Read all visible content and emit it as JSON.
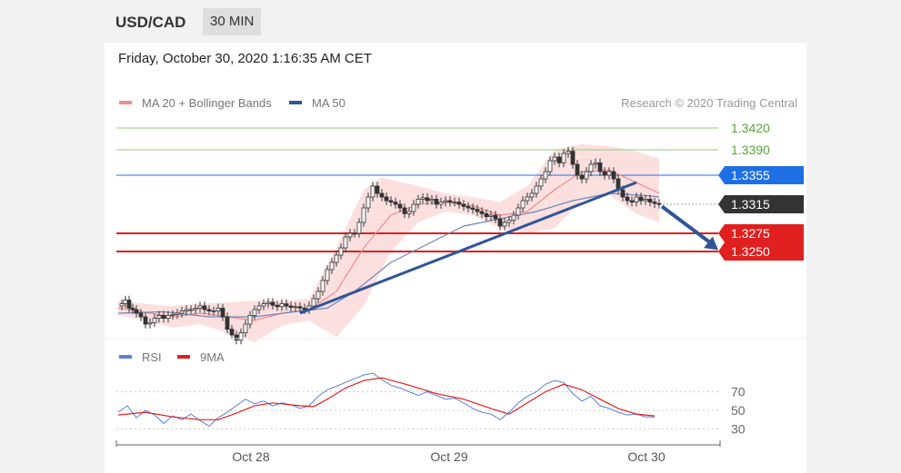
{
  "header": {
    "pair": "USD/CAD",
    "timeframe": "30 MIN"
  },
  "date_text": "Friday, October 30, 2020 1:16:35 AM CET",
  "credit": "Research © 2020 Trading Central",
  "colors": {
    "support": "#e01f1f",
    "resistance_green": "#8fcf6f",
    "pivot_blue": "#1e6fe6",
    "current": "#333333",
    "ma50": "#2f5597",
    "bollinger": "#f08b8b",
    "rsi": "#5b7fd8",
    "rsi_ma": "#e01f1f"
  },
  "chart_data": [
    {
      "type": "line",
      "title": "",
      "legend": [
        {
          "name": "MA 20 + Bollinger Bands",
          "color": "#f08b8b"
        },
        {
          "name": "MA 50",
          "color": "#2f5597"
        }
      ],
      "levels": [
        {
          "label": "1.3420",
          "value": 1.342,
          "kind": "resistance"
        },
        {
          "label": "1.3390",
          "value": 1.339,
          "kind": "resistance"
        },
        {
          "label": "1.3355",
          "value": 1.3355,
          "kind": "pivot"
        },
        {
          "label": "1.3315",
          "value": 1.3315,
          "kind": "current"
        },
        {
          "label": "1.3275",
          "value": 1.3275,
          "kind": "support"
        },
        {
          "label": "1.3250",
          "value": 1.325,
          "kind": "support"
        }
      ],
      "price_series": [
        {
          "x": 0,
          "y": 1.3175
        },
        {
          "x": 4,
          "y": 1.3178
        },
        {
          "x": 8,
          "y": 1.3183
        },
        {
          "x": 12,
          "y": 1.3172
        },
        {
          "x": 16,
          "y": 1.317
        },
        {
          "x": 20,
          "y": 1.3165
        },
        {
          "x": 25,
          "y": 1.316
        },
        {
          "x": 30,
          "y": 1.315
        },
        {
          "x": 35,
          "y": 1.3152
        },
        {
          "x": 40,
          "y": 1.3158
        },
        {
          "x": 45,
          "y": 1.3162
        },
        {
          "x": 50,
          "y": 1.3158
        },
        {
          "x": 55,
          "y": 1.3162
        },
        {
          "x": 60,
          "y": 1.3163
        },
        {
          "x": 65,
          "y": 1.3165
        },
        {
          "x": 70,
          "y": 1.3168
        },
        {
          "x": 75,
          "y": 1.317
        },
        {
          "x": 80,
          "y": 1.317
        },
        {
          "x": 85,
          "y": 1.3172
        },
        {
          "x": 90,
          "y": 1.3175
        },
        {
          "x": 95,
          "y": 1.317
        },
        {
          "x": 100,
          "y": 1.3168
        },
        {
          "x": 105,
          "y": 1.3168
        },
        {
          "x": 110,
          "y": 1.3172
        },
        {
          "x": 115,
          "y": 1.316
        },
        {
          "x": 120,
          "y": 1.3143
        },
        {
          "x": 125,
          "y": 1.3135
        },
        {
          "x": 130,
          "y": 1.3128
        },
        {
          "x": 135,
          "y": 1.3138
        },
        {
          "x": 140,
          "y": 1.315
        },
        {
          "x": 145,
          "y": 1.3162
        },
        {
          "x": 150,
          "y": 1.317
        },
        {
          "x": 155,
          "y": 1.3175
        },
        {
          "x": 160,
          "y": 1.3178
        },
        {
          "x": 165,
          "y": 1.318
        },
        {
          "x": 170,
          "y": 1.3176
        },
        {
          "x": 175,
          "y": 1.3174
        },
        {
          "x": 180,
          "y": 1.3178
        },
        {
          "x": 185,
          "y": 1.3175
        },
        {
          "x": 190,
          "y": 1.3173
        },
        {
          "x": 195,
          "y": 1.3174
        },
        {
          "x": 200,
          "y": 1.3172
        },
        {
          "x": 205,
          "y": 1.317
        },
        {
          "x": 210,
          "y": 1.3175
        },
        {
          "x": 215,
          "y": 1.3185
        },
        {
          "x": 220,
          "y": 1.3195
        },
        {
          "x": 225,
          "y": 1.321
        },
        {
          "x": 230,
          "y": 1.3225
        },
        {
          "x": 235,
          "y": 1.3235
        },
        {
          "x": 240,
          "y": 1.3245
        },
        {
          "x": 245,
          "y": 1.3255
        },
        {
          "x": 250,
          "y": 1.327
        },
        {
          "x": 255,
          "y": 1.3275
        },
        {
          "x": 260,
          "y": 1.3275
        },
        {
          "x": 265,
          "y": 1.329
        },
        {
          "x": 270,
          "y": 1.331
        },
        {
          "x": 275,
          "y": 1.3325
        },
        {
          "x": 280,
          "y": 1.334
        },
        {
          "x": 285,
          "y": 1.333
        },
        {
          "x": 290,
          "y": 1.3325
        },
        {
          "x": 295,
          "y": 1.332
        },
        {
          "x": 300,
          "y": 1.3318
        },
        {
          "x": 305,
          "y": 1.3315
        },
        {
          "x": 310,
          "y": 1.331
        },
        {
          "x": 315,
          "y": 1.3302
        },
        {
          "x": 320,
          "y": 1.3305
        },
        {
          "x": 325,
          "y": 1.3315
        },
        {
          "x": 330,
          "y": 1.3322
        },
        {
          "x": 335,
          "y": 1.3324
        },
        {
          "x": 340,
          "y": 1.332
        },
        {
          "x": 345,
          "y": 1.3322
        },
        {
          "x": 350,
          "y": 1.3315
        },
        {
          "x": 355,
          "y": 1.3318
        },
        {
          "x": 360,
          "y": 1.332
        },
        {
          "x": 365,
          "y": 1.3318
        },
        {
          "x": 370,
          "y": 1.3318
        },
        {
          "x": 375,
          "y": 1.3315
        },
        {
          "x": 380,
          "y": 1.3312
        },
        {
          "x": 385,
          "y": 1.331
        },
        {
          "x": 390,
          "y": 1.3308
        },
        {
          "x": 395,
          "y": 1.3305
        },
        {
          "x": 400,
          "y": 1.3302
        },
        {
          "x": 405,
          "y": 1.3298
        },
        {
          "x": 410,
          "y": 1.33
        },
        {
          "x": 415,
          "y": 1.3295
        },
        {
          "x": 420,
          "y": 1.3285
        },
        {
          "x": 425,
          "y": 1.329
        },
        {
          "x": 430,
          "y": 1.3293
        },
        {
          "x": 435,
          "y": 1.33
        },
        {
          "x": 440,
          "y": 1.331
        },
        {
          "x": 445,
          "y": 1.332
        },
        {
          "x": 450,
          "y": 1.3325
        },
        {
          "x": 455,
          "y": 1.333
        },
        {
          "x": 460,
          "y": 1.334
        },
        {
          "x": 465,
          "y": 1.335
        },
        {
          "x": 470,
          "y": 1.336
        },
        {
          "x": 475,
          "y": 1.3375
        },
        {
          "x": 480,
          "y": 1.338
        },
        {
          "x": 485,
          "y": 1.3372
        },
        {
          "x": 490,
          "y": 1.3385
        },
        {
          "x": 495,
          "y": 1.3388
        },
        {
          "x": 500,
          "y": 1.337
        },
        {
          "x": 505,
          "y": 1.3355
        },
        {
          "x": 510,
          "y": 1.335
        },
        {
          "x": 515,
          "y": 1.336
        },
        {
          "x": 520,
          "y": 1.337
        },
        {
          "x": 525,
          "y": 1.3372
        },
        {
          "x": 530,
          "y": 1.336
        },
        {
          "x": 535,
          "y": 1.3355
        },
        {
          "x": 540,
          "y": 1.336
        },
        {
          "x": 545,
          "y": 1.335
        },
        {
          "x": 550,
          "y": 1.3335
        },
        {
          "x": 555,
          "y": 1.3325
        },
        {
          "x": 560,
          "y": 1.332
        },
        {
          "x": 565,
          "y": 1.3318
        },
        {
          "x": 570,
          "y": 1.3325
        },
        {
          "x": 575,
          "y": 1.332
        },
        {
          "x": 580,
          "y": 1.3322
        },
        {
          "x": 585,
          "y": 1.3318
        },
        {
          "x": 590,
          "y": 1.3316
        },
        {
          "x": 595,
          "y": 1.3315
        }
      ],
      "ma20": [
        {
          "x": 0,
          "y": 1.3172
        },
        {
          "x": 30,
          "y": 1.3166
        },
        {
          "x": 60,
          "y": 1.316
        },
        {
          "x": 90,
          "y": 1.3165
        },
        {
          "x": 120,
          "y": 1.316
        },
        {
          "x": 150,
          "y": 1.3155
        },
        {
          "x": 180,
          "y": 1.3165
        },
        {
          "x": 210,
          "y": 1.317
        },
        {
          "x": 240,
          "y": 1.3195
        },
        {
          "x": 270,
          "y": 1.3255
        },
        {
          "x": 300,
          "y": 1.33
        },
        {
          "x": 330,
          "y": 1.3315
        },
        {
          "x": 360,
          "y": 1.3318
        },
        {
          "x": 390,
          "y": 1.3313
        },
        {
          "x": 420,
          "y": 1.33
        },
        {
          "x": 450,
          "y": 1.3305
        },
        {
          "x": 480,
          "y": 1.3335
        },
        {
          "x": 510,
          "y": 1.336
        },
        {
          "x": 540,
          "y": 1.3362
        },
        {
          "x": 570,
          "y": 1.3345
        },
        {
          "x": 595,
          "y": 1.333
        }
      ],
      "bollinger_upper": [
        {
          "x": 0,
          "y": 1.3182
        },
        {
          "x": 30,
          "y": 1.3178
        },
        {
          "x": 60,
          "y": 1.3175
        },
        {
          "x": 90,
          "y": 1.3178
        },
        {
          "x": 120,
          "y": 1.318
        },
        {
          "x": 150,
          "y": 1.3182
        },
        {
          "x": 180,
          "y": 1.3182
        },
        {
          "x": 210,
          "y": 1.3185
        },
        {
          "x": 240,
          "y": 1.3255
        },
        {
          "x": 270,
          "y": 1.3335
        },
        {
          "x": 290,
          "y": 1.3352
        },
        {
          "x": 330,
          "y": 1.334
        },
        {
          "x": 360,
          "y": 1.333
        },
        {
          "x": 390,
          "y": 1.3325
        },
        {
          "x": 420,
          "y": 1.3318
        },
        {
          "x": 450,
          "y": 1.334
        },
        {
          "x": 480,
          "y": 1.339
        },
        {
          "x": 510,
          "y": 1.3398
        },
        {
          "x": 540,
          "y": 1.3395
        },
        {
          "x": 570,
          "y": 1.3388
        },
        {
          "x": 595,
          "y": 1.3378
        }
      ],
      "bollinger_lower": [
        {
          "x": 0,
          "y": 1.3162
        },
        {
          "x": 30,
          "y": 1.3155
        },
        {
          "x": 60,
          "y": 1.3145
        },
        {
          "x": 90,
          "y": 1.315
        },
        {
          "x": 120,
          "y": 1.3138
        },
        {
          "x": 150,
          "y": 1.3125
        },
        {
          "x": 180,
          "y": 1.3148
        },
        {
          "x": 210,
          "y": 1.3155
        },
        {
          "x": 240,
          "y": 1.3132
        },
        {
          "x": 270,
          "y": 1.3175
        },
        {
          "x": 300,
          "y": 1.325
        },
        {
          "x": 330,
          "y": 1.329
        },
        {
          "x": 360,
          "y": 1.3305
        },
        {
          "x": 390,
          "y": 1.33
        },
        {
          "x": 420,
          "y": 1.3282
        },
        {
          "x": 450,
          "y": 1.3275
        },
        {
          "x": 480,
          "y": 1.3282
        },
        {
          "x": 510,
          "y": 1.332
        },
        {
          "x": 540,
          "y": 1.3328
        },
        {
          "x": 570,
          "y": 1.3302
        },
        {
          "x": 595,
          "y": 1.329
        }
      ],
      "ma50": [
        {
          "x": 0,
          "y": 1.3165
        },
        {
          "x": 50,
          "y": 1.3167
        },
        {
          "x": 100,
          "y": 1.316
        },
        {
          "x": 150,
          "y": 1.316
        },
        {
          "x": 200,
          "y": 1.3168
        },
        {
          "x": 230,
          "y": 1.3172
        },
        {
          "x": 260,
          "y": 1.3195
        },
        {
          "x": 300,
          "y": 1.3235
        },
        {
          "x": 340,
          "y": 1.326
        },
        {
          "x": 380,
          "y": 1.3285
        },
        {
          "x": 420,
          "y": 1.3295
        },
        {
          "x": 460,
          "y": 1.3305
        },
        {
          "x": 500,
          "y": 1.332
        },
        {
          "x": 540,
          "y": 1.333
        },
        {
          "x": 580,
          "y": 1.3327
        },
        {
          "x": 595,
          "y": 1.3325
        }
      ],
      "trendline": [
        {
          "x": 200,
          "y": 1.3165
        },
        {
          "x": 570,
          "y": 1.3345
        }
      ],
      "forecast_arrow": [
        {
          "x": 598,
          "y": 1.3312
        },
        {
          "x": 660,
          "y": 1.3252
        }
      ]
    },
    {
      "type": "line",
      "title": "",
      "legend": [
        {
          "name": "RSI",
          "color": "#5b7fd8"
        },
        {
          "name": "9MA",
          "color": "#e01f1f"
        }
      ],
      "y_ticks": [
        70,
        50,
        30
      ],
      "x_labels": [
        "Oct 28",
        "Oct 29",
        "Oct 30"
      ],
      "rsi": [
        {
          "x": 0,
          "y": 48
        },
        {
          "x": 10,
          "y": 55
        },
        {
          "x": 20,
          "y": 42
        },
        {
          "x": 30,
          "y": 50
        },
        {
          "x": 40,
          "y": 45
        },
        {
          "x": 50,
          "y": 36
        },
        {
          "x": 60,
          "y": 44
        },
        {
          "x": 70,
          "y": 40
        },
        {
          "x": 80,
          "y": 46
        },
        {
          "x": 90,
          "y": 39
        },
        {
          "x": 100,
          "y": 33
        },
        {
          "x": 110,
          "y": 42
        },
        {
          "x": 120,
          "y": 48
        },
        {
          "x": 130,
          "y": 55
        },
        {
          "x": 140,
          "y": 62
        },
        {
          "x": 150,
          "y": 57
        },
        {
          "x": 160,
          "y": 60
        },
        {
          "x": 170,
          "y": 55
        },
        {
          "x": 180,
          "y": 58
        },
        {
          "x": 190,
          "y": 56
        },
        {
          "x": 200,
          "y": 52
        },
        {
          "x": 210,
          "y": 55
        },
        {
          "x": 220,
          "y": 65
        },
        {
          "x": 230,
          "y": 72
        },
        {
          "x": 240,
          "y": 76
        },
        {
          "x": 250,
          "y": 80
        },
        {
          "x": 260,
          "y": 84
        },
        {
          "x": 270,
          "y": 88
        },
        {
          "x": 280,
          "y": 90
        },
        {
          "x": 290,
          "y": 83
        },
        {
          "x": 300,
          "y": 77
        },
        {
          "x": 310,
          "y": 74
        },
        {
          "x": 320,
          "y": 70
        },
        {
          "x": 330,
          "y": 66
        },
        {
          "x": 340,
          "y": 70
        },
        {
          "x": 350,
          "y": 66
        },
        {
          "x": 360,
          "y": 62
        },
        {
          "x": 370,
          "y": 63
        },
        {
          "x": 380,
          "y": 58
        },
        {
          "x": 390,
          "y": 52
        },
        {
          "x": 400,
          "y": 48
        },
        {
          "x": 410,
          "y": 46
        },
        {
          "x": 420,
          "y": 40
        },
        {
          "x": 430,
          "y": 48
        },
        {
          "x": 440,
          "y": 58
        },
        {
          "x": 450,
          "y": 65
        },
        {
          "x": 460,
          "y": 70
        },
        {
          "x": 470,
          "y": 78
        },
        {
          "x": 480,
          "y": 82
        },
        {
          "x": 490,
          "y": 80
        },
        {
          "x": 500,
          "y": 68
        },
        {
          "x": 510,
          "y": 60
        },
        {
          "x": 520,
          "y": 65
        },
        {
          "x": 530,
          "y": 55
        },
        {
          "x": 540,
          "y": 52
        },
        {
          "x": 550,
          "y": 48
        },
        {
          "x": 560,
          "y": 45
        },
        {
          "x": 570,
          "y": 46
        },
        {
          "x": 580,
          "y": 43
        },
        {
          "x": 590,
          "y": 43
        }
      ],
      "rsi_9ma": [
        {
          "x": 0,
          "y": 45
        },
        {
          "x": 30,
          "y": 48
        },
        {
          "x": 60,
          "y": 43
        },
        {
          "x": 90,
          "y": 40
        },
        {
          "x": 110,
          "y": 40
        },
        {
          "x": 130,
          "y": 47
        },
        {
          "x": 150,
          "y": 55
        },
        {
          "x": 170,
          "y": 58
        },
        {
          "x": 200,
          "y": 55
        },
        {
          "x": 215,
          "y": 54
        },
        {
          "x": 230,
          "y": 62
        },
        {
          "x": 250,
          "y": 74
        },
        {
          "x": 270,
          "y": 82
        },
        {
          "x": 290,
          "y": 85
        },
        {
          "x": 320,
          "y": 77
        },
        {
          "x": 350,
          "y": 68
        },
        {
          "x": 380,
          "y": 62
        },
        {
          "x": 410,
          "y": 52
        },
        {
          "x": 430,
          "y": 46
        },
        {
          "x": 450,
          "y": 58
        },
        {
          "x": 470,
          "y": 70
        },
        {
          "x": 490,
          "y": 78
        },
        {
          "x": 510,
          "y": 72
        },
        {
          "x": 530,
          "y": 62
        },
        {
          "x": 550,
          "y": 52
        },
        {
          "x": 570,
          "y": 46
        },
        {
          "x": 590,
          "y": 44
        }
      ]
    }
  ]
}
